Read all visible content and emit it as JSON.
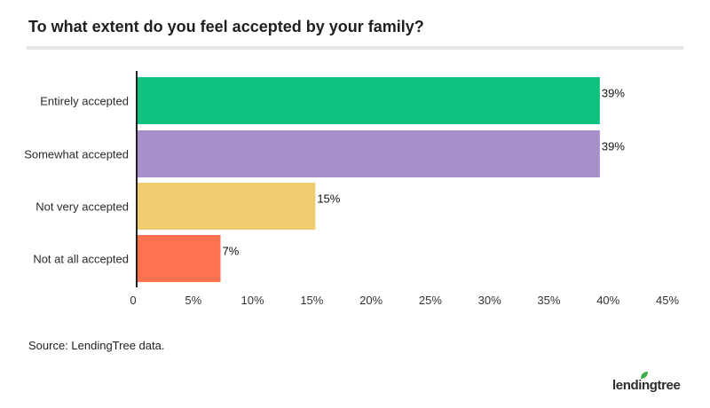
{
  "title": "To what extent do you feel accepted by your family?",
  "source": "Source: LendingTree data.",
  "logo": {
    "text": "lendingtree",
    "icon": "leaf-icon",
    "color": "#3fae49"
  },
  "chart_data": {
    "type": "bar",
    "orientation": "horizontal",
    "title": "To what extent do you feel accepted by your family?",
    "xlabel": "",
    "ylabel": "",
    "categories": [
      "Entirely accepted",
      "Somewhat accepted",
      "Not very accepted",
      "Not at all accepted"
    ],
    "values": [
      39,
      39,
      15,
      7
    ],
    "data_labels": [
      "39%",
      "39%",
      "15%",
      "7%"
    ],
    "colors": [
      "#0cc27e",
      "#a98fc9",
      "#efcd6e",
      "#ff7150"
    ],
    "xlim": [
      0,
      45
    ],
    "ticks": [
      0,
      5,
      10,
      15,
      20,
      25,
      30,
      35,
      40,
      45
    ],
    "tick_labels": [
      "0",
      "5%",
      "10%",
      "15%",
      "20%",
      "25%",
      "30%",
      "35%",
      "40%",
      "45%"
    ],
    "grid": false,
    "legend": "none"
  }
}
